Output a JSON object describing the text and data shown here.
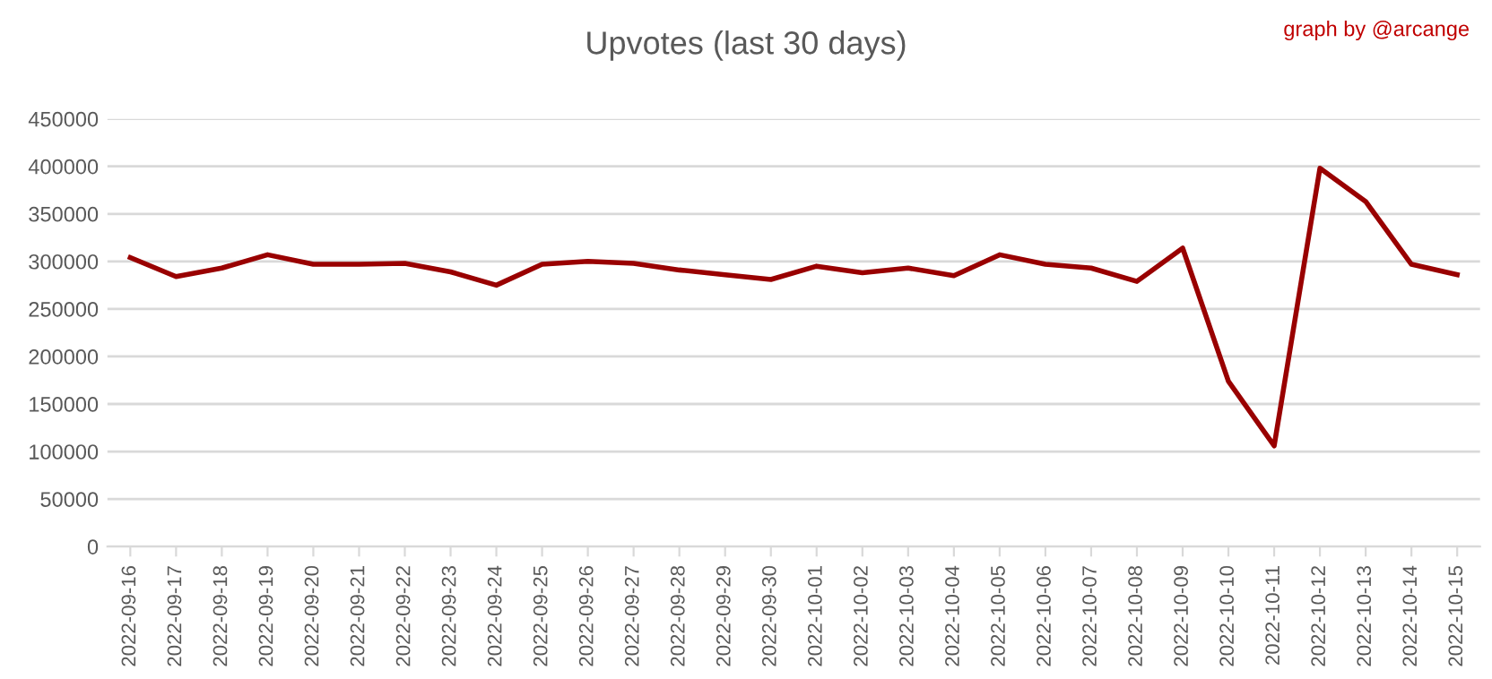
{
  "chart_data": {
    "type": "line",
    "title": "Upvotes (last 30 days)",
    "annotations": [
      "graph by @arcange"
    ],
    "categories": [
      "2022-09-16",
      "2022-09-17",
      "2022-09-18",
      "2022-09-19",
      "2022-09-20",
      "2022-09-21",
      "2022-09-22",
      "2022-09-23",
      "2022-09-24",
      "2022-09-25",
      "2022-09-26",
      "2022-09-27",
      "2022-09-28",
      "2022-09-29",
      "2022-09-30",
      "2022-10-01",
      "2022-10-02",
      "2022-10-03",
      "2022-10-04",
      "2022-10-05",
      "2022-10-06",
      "2022-10-07",
      "2022-10-08",
      "2022-10-09",
      "2022-10-10",
      "2022-10-11",
      "2022-10-12",
      "2022-10-13",
      "2022-10-14",
      "2022-10-15"
    ],
    "series": [
      {
        "color": "#990000",
        "values": [
          304000,
          284000,
          293000,
          307000,
          297000,
          297000,
          298000,
          289000,
          275000,
          297000,
          300000,
          298000,
          291000,
          286000,
          281000,
          295000,
          288000,
          293000,
          285000,
          307000,
          297000,
          293000,
          279000,
          314000,
          174000,
          106000,
          398000,
          363000,
          297000,
          286000
        ]
      }
    ],
    "ylim": [
      0,
      450000
    ],
    "yticks": [
      0,
      50000,
      100000,
      150000,
      200000,
      250000,
      300000,
      350000,
      400000,
      450000
    ],
    "grid": "y",
    "legend": false,
    "marker": "none",
    "line_style": "solid"
  }
}
